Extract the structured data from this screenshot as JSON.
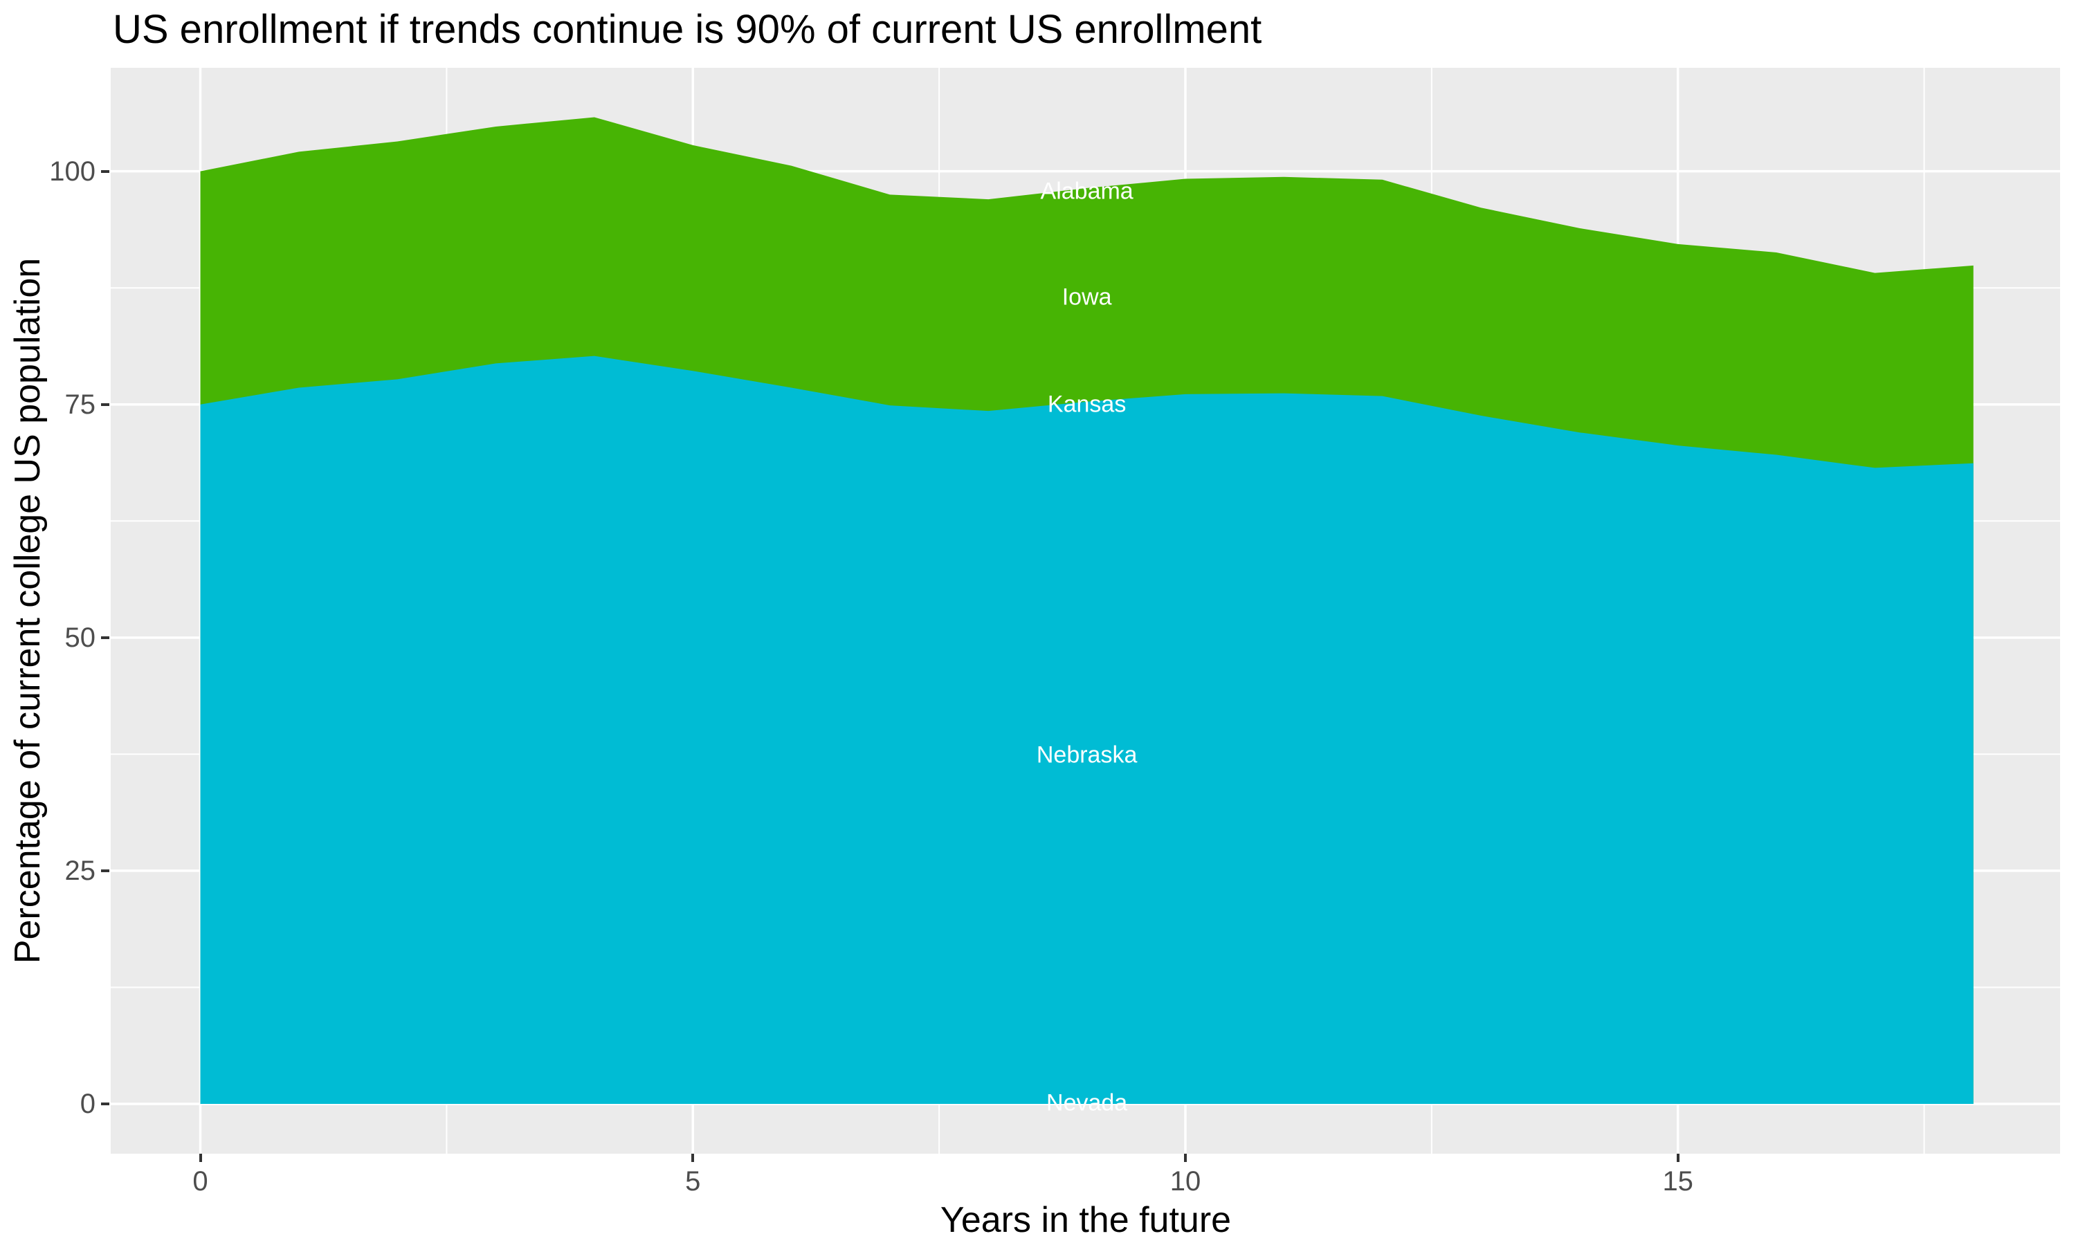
{
  "title": "US enrollment if trends continue is 90% of current US enrollment",
  "axes": {
    "x": {
      "title": "Years in the future",
      "tick_labels": [
        "0",
        "5",
        "10",
        "15"
      ],
      "tick_values": [
        0,
        5,
        10,
        15
      ],
      "minor_ticks": [
        2.5,
        7.5,
        12.5,
        17.5
      ]
    },
    "y": {
      "title": "Percentage of current college US population",
      "tick_labels": [
        "0",
        "25",
        "50",
        "75",
        "100"
      ],
      "tick_values": [
        0,
        25,
        50,
        75,
        100
      ],
      "minor_ticks": [
        12.5,
        37.5,
        62.5,
        87.5
      ]
    }
  },
  "colors": {
    "green_area": "#47B404",
    "cyan_area": "#00BCD4",
    "panel_background": "#EBEBEB",
    "gridline": "#FFFFFF",
    "tick_label": "#4D4D4D",
    "tick_mark": "#333333",
    "state_label": "#FFFFFF",
    "title_text": "#000000"
  },
  "chart_data": {
    "type": "area",
    "stacked": true,
    "title": "US enrollment if trends continue is 90% of current US enrollment",
    "xlabel": "Years in the future",
    "ylabel": "Percentage of current college US population",
    "xlim": [
      -0.91,
      18.88
    ],
    "ylim": [
      -5.34,
      111.1
    ],
    "grid": "white major and minor gridlines on grey panel, ggplot style",
    "legend": "none",
    "x": [
      0,
      1,
      2,
      3,
      4,
      5,
      6,
      7,
      8,
      9,
      10,
      11,
      12,
      13,
      14,
      15,
      16,
      17,
      18
    ],
    "series": [
      {
        "name": "stack total (top edge of green band)",
        "values": [
          100.0,
          102.1,
          103.2,
          104.8,
          105.8,
          102.8,
          100.6,
          97.5,
          97.0,
          98.2,
          99.2,
          99.4,
          99.1,
          96.1,
          93.9,
          92.2,
          91.3,
          89.1,
          89.9
        ]
      },
      {
        "name": "cyan band top (green/cyan boundary)",
        "values": [
          75.0,
          76.8,
          77.7,
          79.4,
          80.2,
          78.6,
          76.8,
          74.9,
          74.3,
          75.3,
          76.1,
          76.2,
          75.9,
          73.8,
          72.0,
          70.6,
          69.6,
          68.2,
          68.7
        ]
      }
    ],
    "bands": [
      {
        "label": "green band (between boundary and total)",
        "fill": "#47B404"
      },
      {
        "label": "cyan band (between 0 and boundary)",
        "fill": "#00BCD4"
      }
    ],
    "state_labels": [
      {
        "text": "Alabama",
        "x": 9,
        "y": 97.8
      },
      {
        "text": "Iowa",
        "x": 9,
        "y": 86.5
      },
      {
        "text": "Kansas",
        "x": 9,
        "y": 75.0
      },
      {
        "text": "Nebraska",
        "x": 9,
        "y": 37.4
      },
      {
        "text": "Nevada",
        "x": 9,
        "y": 0.1
      }
    ]
  }
}
